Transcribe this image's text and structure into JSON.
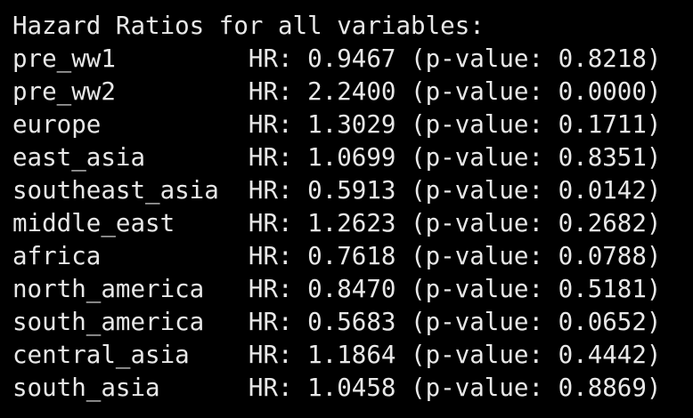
{
  "terminal": {
    "header": "Hazard Ratios for all variables:",
    "lines": [
      "pre_ww1         HR: 0.9467 (p-value: 0.8218)",
      "pre_ww2         HR: 2.2400 (p-value: 0.0000)",
      "europe          HR: 1.3029 (p-value: 0.1711)",
      "east_asia       HR: 1.0699 (p-value: 0.8351)",
      "southeast_asia  HR: 0.5913 (p-value: 0.0142)",
      "middle_east     HR: 1.2623 (p-value: 0.2682)",
      "africa          HR: 0.7618 (p-value: 0.0788)",
      "north_america   HR: 0.8470 (p-value: 0.5181)",
      "south_america   HR: 0.5683 (p-value: 0.0652)",
      "central_asia    HR: 1.1864 (p-value: 0.4442)",
      "south_asia      HR: 1.0458 (p-value: 0.8869)"
    ]
  }
}
